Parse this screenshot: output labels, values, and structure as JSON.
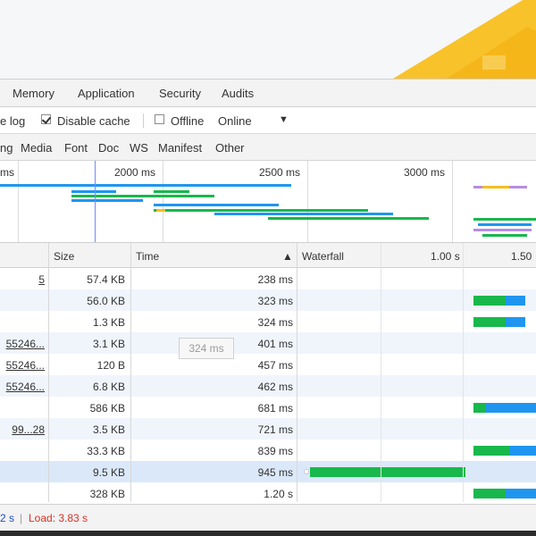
{
  "panel_tabs": [
    {
      "label": "Memory"
    },
    {
      "label": "Application"
    },
    {
      "label": "Security"
    },
    {
      "label": "Audits"
    }
  ],
  "toolbar": {
    "preserve_log_label": "e log",
    "disable_cache_label": "Disable cache",
    "disable_cache_checked": true,
    "offline_label": "Offline",
    "throttling_value": "Online",
    "dropdown_glyph": "▼"
  },
  "filters": [
    "ng",
    "Media",
    "Font",
    "Doc",
    "WS",
    "Manifest",
    "Other"
  ],
  "overview": {
    "ticks": [
      "ms",
      "2000 ms",
      "2500 ms",
      "3000 ms"
    ]
  },
  "table": {
    "headers": {
      "size": "Size",
      "time": "Time",
      "sort_glyph": "▲",
      "waterfall": "Waterfall",
      "tick_1": "1.00 s",
      "tick_2": "1.50"
    },
    "rows": [
      {
        "name": "5",
        "size": "57.4 KB",
        "time": "238 ms"
      },
      {
        "name": "",
        "size": "56.0 KB",
        "time": "323 ms"
      },
      {
        "name": "",
        "size": "1.3 KB",
        "time": "324 ms"
      },
      {
        "name": "55246...",
        "size": "3.1 KB",
        "time": "401 ms"
      },
      {
        "name": "55246...",
        "size": "120 B",
        "time": "457 ms"
      },
      {
        "name": "55246...",
        "size": "6.8 KB",
        "time": "462 ms"
      },
      {
        "name": "",
        "size": "586 KB",
        "time": "681 ms"
      },
      {
        "name": "99...28",
        "size": "3.5 KB",
        "time": "721 ms"
      },
      {
        "name": "",
        "size": "33.3 KB",
        "time": "839 ms"
      },
      {
        "name": "",
        "size": "9.5 KB",
        "time": "945 ms"
      },
      {
        "name": "",
        "size": "328 KB",
        "time": "1.20 s"
      }
    ]
  },
  "tooltip": "324 ms",
  "status": {
    "dom_loaded": "2 s",
    "separator": "|",
    "load": "Load: 3.83 s"
  },
  "colors": {
    "waiting": "#18b84c",
    "download": "#1e96f0",
    "accent_yellow": "#f7bd1e",
    "load_red": "#d93025",
    "dom_blue": "#1a4ccf"
  }
}
